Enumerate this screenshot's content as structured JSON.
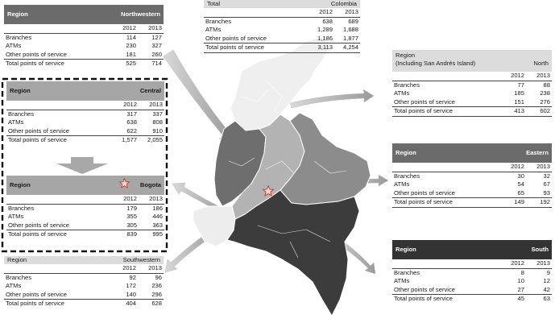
{
  "years": [
    "2012",
    "2013"
  ],
  "row_labels": [
    "Branches",
    "ATMs",
    "Other points of service",
    "Total points of service"
  ],
  "region_label": "Region",
  "total": {
    "label": "Total",
    "name": "Colombia",
    "values": [
      [
        "638",
        "689"
      ],
      [
        "1,289",
        "1,688"
      ],
      [
        "1,186",
        "1,877"
      ],
      [
        "3,113",
        "4,254"
      ]
    ]
  },
  "regions": {
    "northwestern": {
      "name": "Northwestern",
      "values": [
        [
          "114",
          "127"
        ],
        [
          "230",
          "327"
        ],
        [
          "181",
          "260"
        ],
        [
          "525",
          "714"
        ]
      ]
    },
    "central": {
      "name": "Central",
      "values": [
        [
          "317",
          "337"
        ],
        [
          "638",
          "808"
        ],
        [
          "622",
          "910"
        ],
        [
          "1,577",
          "2,055"
        ]
      ]
    },
    "bogota": {
      "name": "Bogota",
      "values": [
        [
          "179",
          "186"
        ],
        [
          "355",
          "446"
        ],
        [
          "305",
          "363"
        ],
        [
          "839",
          "995"
        ]
      ]
    },
    "southwestern": {
      "name": "Southwestern",
      "values": [
        [
          "92",
          "96"
        ],
        [
          "172",
          "236"
        ],
        [
          "140",
          "296"
        ],
        [
          "404",
          "628"
        ]
      ]
    },
    "north": {
      "label": "Region",
      "sublabel": "(Including San Andrés Island)",
      "name": "North",
      "values": [
        [
          "77",
          "88"
        ],
        [
          "185",
          "238"
        ],
        [
          "151",
          "276"
        ],
        [
          "413",
          "602"
        ]
      ]
    },
    "eastern": {
      "name": "Eastern",
      "values": [
        [
          "30",
          "32"
        ],
        [
          "54",
          "67"
        ],
        [
          "65",
          "93"
        ],
        [
          "149",
          "192"
        ]
      ]
    },
    "south": {
      "name": "South",
      "values": [
        [
          "8",
          "9"
        ],
        [
          "10",
          "12"
        ],
        [
          "27",
          "42"
        ],
        [
          "45",
          "63"
        ]
      ]
    }
  },
  "map_colors": {
    "north": "#efefef",
    "northwestern": "#6e6e6e",
    "central": "#b3b3b3",
    "eastern": "#8c8c8c",
    "southwestern": "#ededed",
    "south": "#3c3c3c",
    "bogota_marker": "#c0392b"
  },
  "icons": {
    "bogota_marker": "star-icon",
    "connectors": "arrow-icon"
  }
}
